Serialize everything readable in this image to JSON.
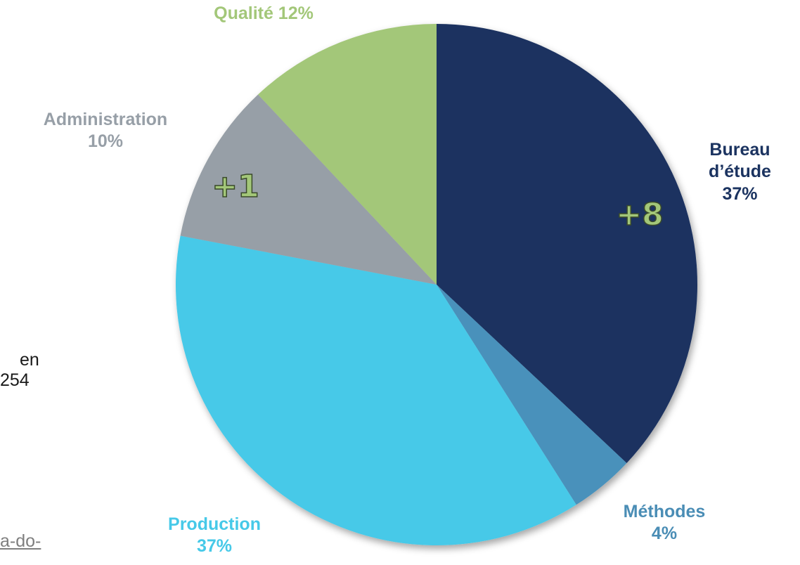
{
  "chart_data": {
    "type": "pie",
    "title": "",
    "slices": [
      {
        "key": "bureau",
        "label_lines": [
          "Bureau",
          "d’étude",
          "37%"
        ],
        "value": 37,
        "color": "#1b3360",
        "label_color": "#1b3360"
      },
      {
        "key": "methodes",
        "label_lines": [
          "Méthodes",
          "4%"
        ],
        "value": 4,
        "color": "#4891bb",
        "label_color": "#4a8db5"
      },
      {
        "key": "production",
        "label_lines": [
          "Production",
          "37%"
        ],
        "value": 37,
        "color": "#46c9e8",
        "label_color": "#46c9e8"
      },
      {
        "key": "administration",
        "label_lines": [
          "Administration",
          "10%"
        ],
        "value": 10,
        "color": "#979fa7",
        "label_color": "#979fa7"
      },
      {
        "key": "qualite",
        "label_lines": [
          "Qualité 12%"
        ],
        "value": 12,
        "color": "#a3c779",
        "label_color": "#a3c779"
      }
    ],
    "annotations": [
      {
        "slice": "bureau",
        "text": "+8",
        "fill": "#a3c779",
        "stroke": "#3a4a2a"
      },
      {
        "slice": "administration",
        "text": "+1",
        "fill": "#a3c779",
        "stroke": "#3a4a2a"
      }
    ]
  },
  "side": {
    "text_line1": "en",
    "text_line2": "254",
    "link_text": "a-do-"
  }
}
